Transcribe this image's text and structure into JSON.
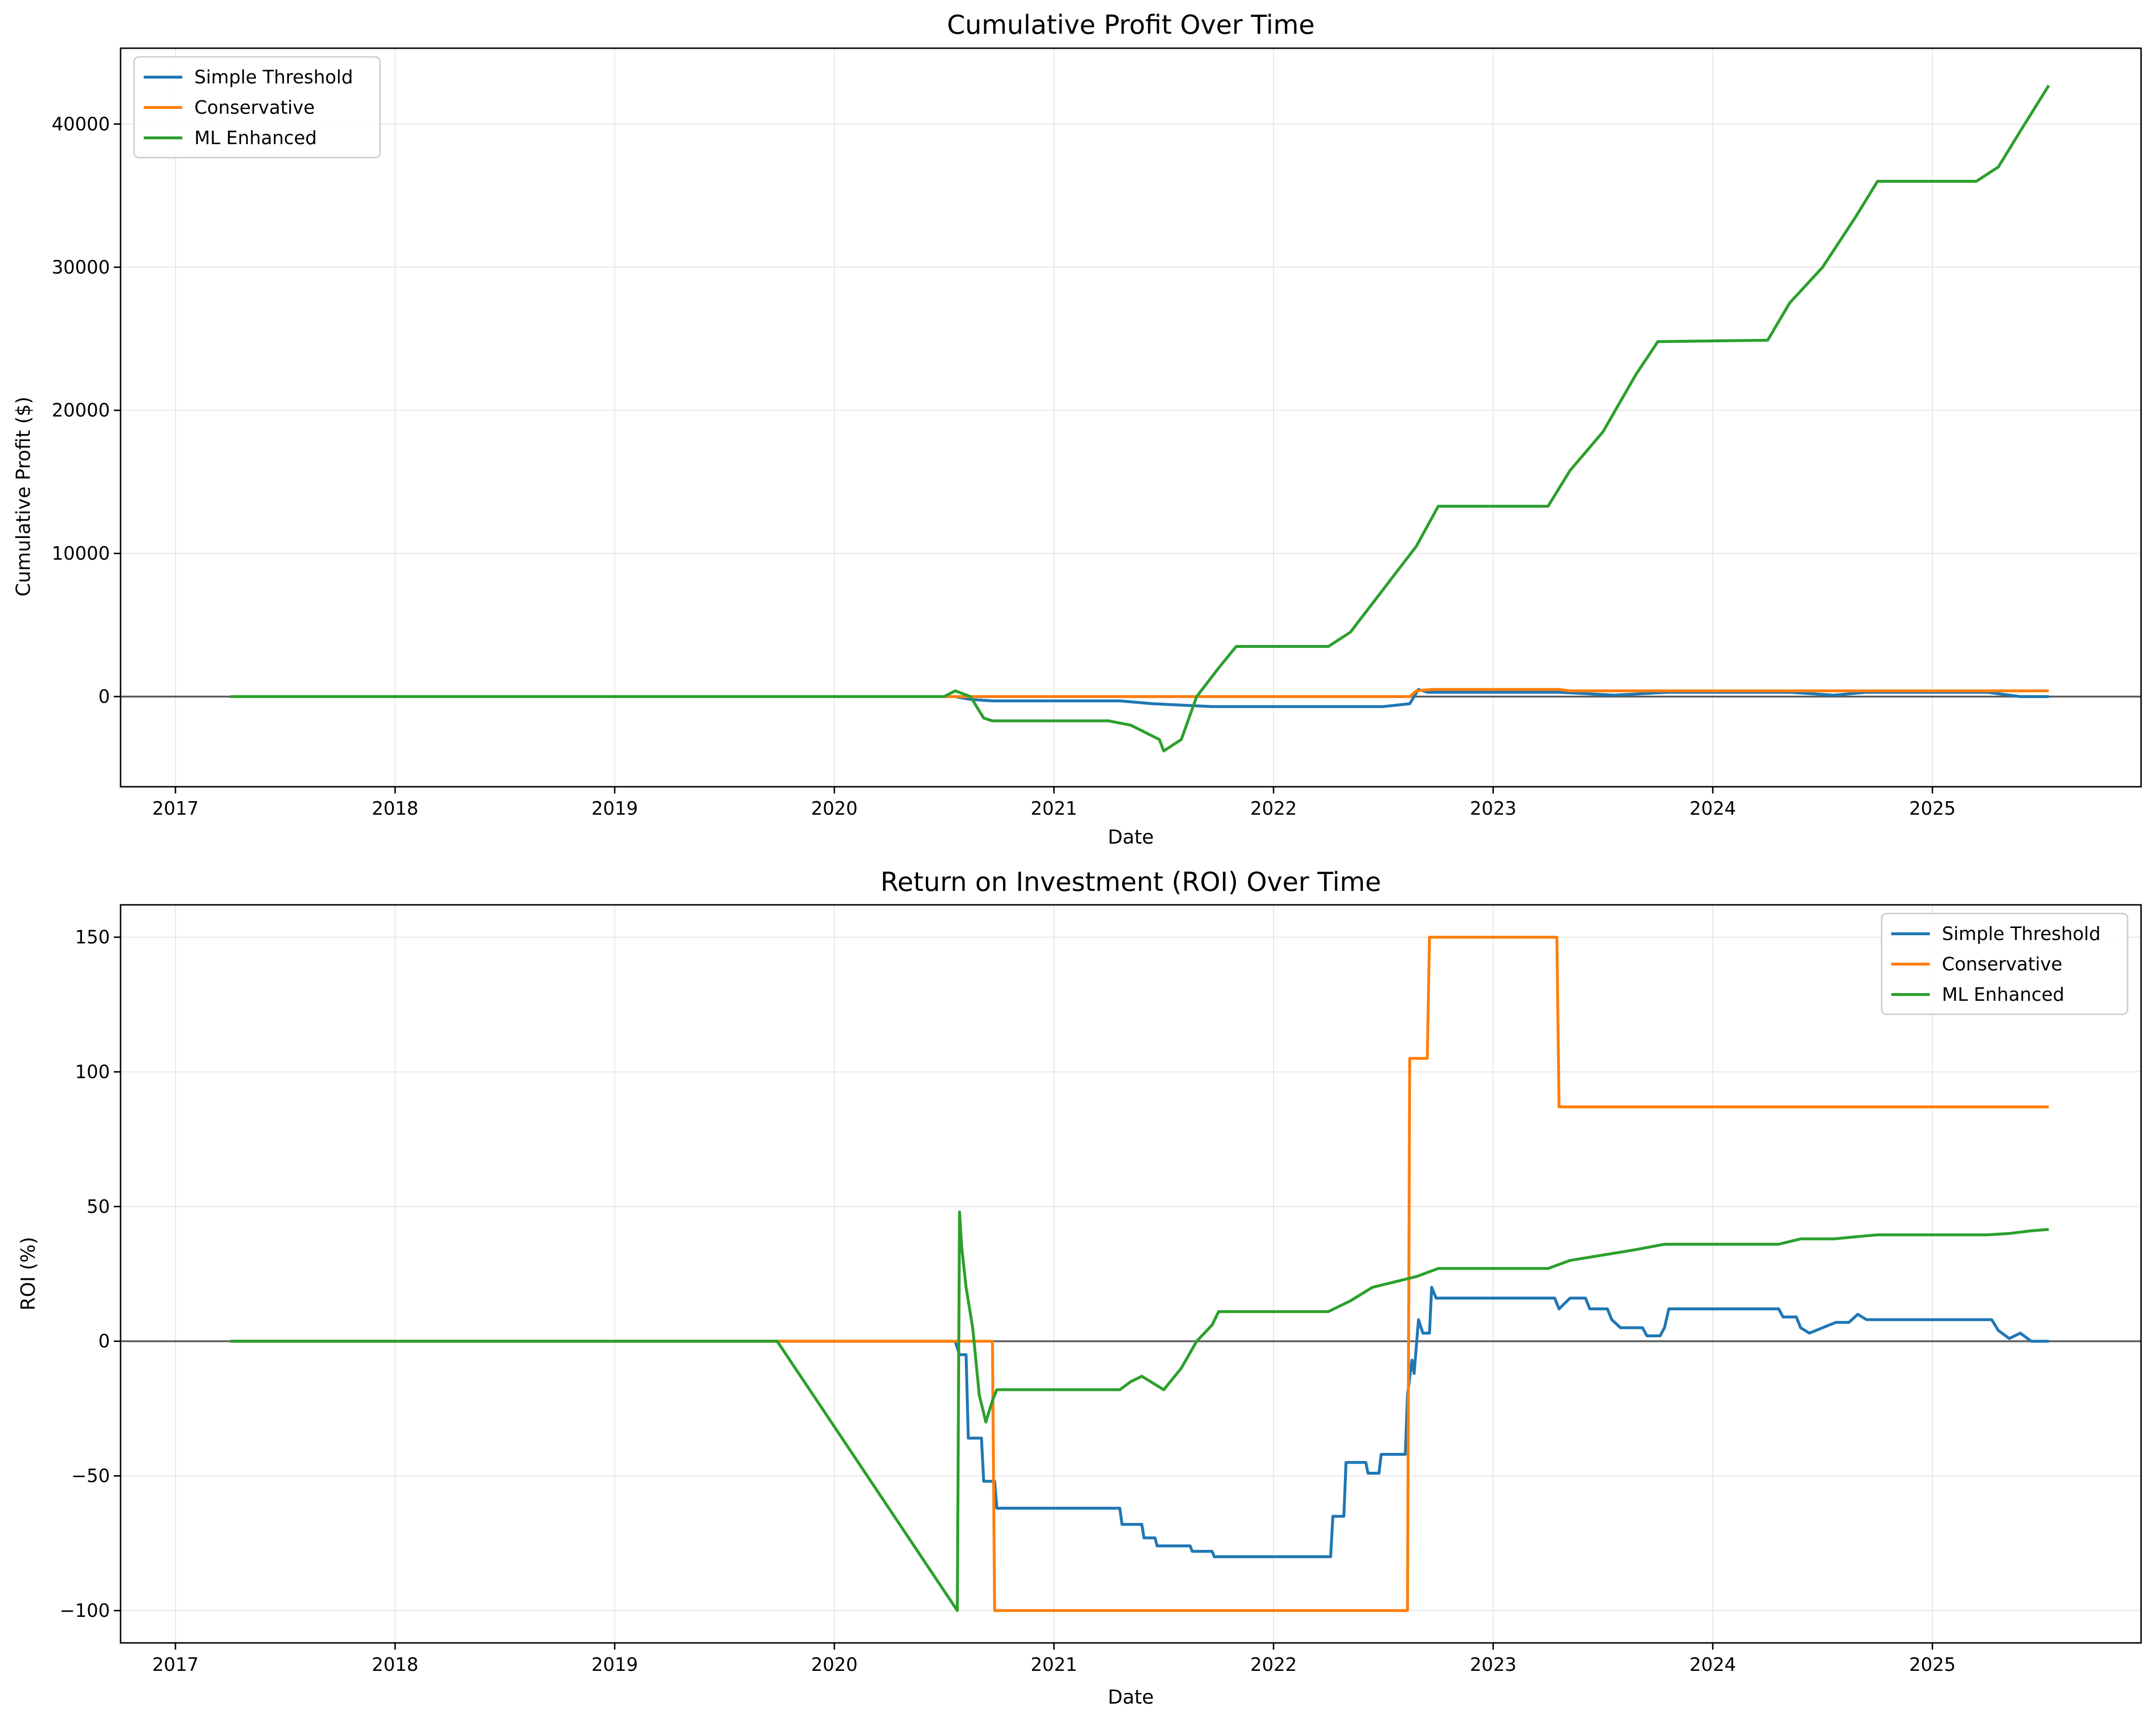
{
  "colors": {
    "simple": "#1f77b4",
    "conservative": "#ff7f0e",
    "ml": "#2ca02c",
    "zero_line": "#000000",
    "grid": "#e6e6e6"
  },
  "chart_data": [
    {
      "type": "line",
      "title": "Cumulative Profit Over Time",
      "xlabel": "Date",
      "ylabel": "Cumulative Profit ($)",
      "xlim": [
        2016.75,
        2025.95
      ],
      "ylim": [
        -6300,
        45300
      ],
      "xticks": [
        2017,
        2018,
        2019,
        2020,
        2021,
        2022,
        2023,
        2024,
        2025
      ],
      "xticklabels": [
        "2017",
        "2018",
        "2019",
        "2020",
        "2021",
        "2022",
        "2023",
        "2024",
        "2025"
      ],
      "yticks": [
        0,
        10000,
        20000,
        30000,
        40000
      ],
      "yticklabels": [
        "0",
        "10000",
        "20000",
        "30000",
        "40000"
      ],
      "grid": true,
      "legend": "top-left",
      "hline": 0,
      "series": [
        {
          "name": "Simple Threshold",
          "color_key": "simple",
          "points": [
            [
              2017.25,
              0
            ],
            [
              2020.55,
              0
            ],
            [
              2020.62,
              -200
            ],
            [
              2020.72,
              -300
            ],
            [
              2021.3,
              -300
            ],
            [
              2021.45,
              -500
            ],
            [
              2021.72,
              -700
            ],
            [
              2022.3,
              -700
            ],
            [
              2022.5,
              -700
            ],
            [
              2022.62,
              -500
            ],
            [
              2022.66,
              500
            ],
            [
              2022.7,
              300
            ],
            [
              2023.3,
              300
            ],
            [
              2023.55,
              100
            ],
            [
              2023.8,
              300
            ],
            [
              2024.35,
              300
            ],
            [
              2024.55,
              100
            ],
            [
              2024.7,
              300
            ],
            [
              2025.25,
              300
            ],
            [
              2025.4,
              0
            ],
            [
              2025.53,
              0
            ]
          ]
        },
        {
          "name": "Conservative",
          "color_key": "conservative",
          "points": [
            [
              2017.25,
              0
            ],
            [
              2020.62,
              0
            ],
            [
              2020.72,
              0
            ],
            [
              2022.62,
              0
            ],
            [
              2022.65,
              400
            ],
            [
              2022.72,
              500
            ],
            [
              2023.3,
              500
            ],
            [
              2023.35,
              400
            ],
            [
              2025.53,
              400
            ]
          ]
        },
        {
          "name": "ML Enhanced",
          "color_key": "ml",
          "points": [
            [
              2017.25,
              0
            ],
            [
              2020.5,
              0
            ],
            [
              2020.55,
              400
            ],
            [
              2020.62,
              0
            ],
            [
              2020.68,
              -1500
            ],
            [
              2020.72,
              -1700
            ],
            [
              2021.25,
              -1700
            ],
            [
              2021.35,
              -2000
            ],
            [
              2021.48,
              -3000
            ],
            [
              2021.5,
              -3800
            ],
            [
              2021.58,
              -3000
            ],
            [
              2021.65,
              0
            ],
            [
              2021.75,
              2000
            ],
            [
              2021.83,
              3500
            ],
            [
              2022.25,
              3500
            ],
            [
              2022.35,
              4500
            ],
            [
              2022.45,
              6500
            ],
            [
              2022.55,
              8500
            ],
            [
              2022.65,
              10500
            ],
            [
              2022.75,
              13300
            ],
            [
              2023.25,
              13300
            ],
            [
              2023.35,
              15800
            ],
            [
              2023.5,
              18500
            ],
            [
              2023.65,
              22500
            ],
            [
              2023.75,
              24800
            ],
            [
              2024.25,
              24900
            ],
            [
              2024.35,
              27500
            ],
            [
              2024.5,
              30000
            ],
            [
              2024.65,
              33500
            ],
            [
              2024.75,
              36000
            ],
            [
              2025.2,
              36000
            ],
            [
              2025.3,
              37000
            ],
            [
              2025.4,
              39500
            ],
            [
              2025.53,
              42700
            ]
          ]
        }
      ]
    },
    {
      "type": "line",
      "title": "Return on Investment (ROI) Over Time",
      "xlabel": "Date",
      "ylabel": "ROI (%)",
      "xlim": [
        2016.75,
        2025.95
      ],
      "ylim": [
        -112,
        162
      ],
      "xticks": [
        2017,
        2018,
        2019,
        2020,
        2021,
        2022,
        2023,
        2024,
        2025
      ],
      "xticklabels": [
        "2017",
        "2018",
        "2019",
        "2020",
        "2021",
        "2022",
        "2023",
        "2024",
        "2025"
      ],
      "yticks": [
        -100,
        -50,
        0,
        50,
        100,
        150
      ],
      "yticklabels": [
        "−100",
        "−50",
        "0",
        "50",
        "100",
        "150"
      ],
      "grid": true,
      "legend": "top-right",
      "hline": 0,
      "series": [
        {
          "name": "Simple Threshold",
          "color_key": "simple",
          "points": [
            [
              2017.25,
              0
            ],
            [
              2020.55,
              0
            ],
            [
              2020.57,
              -5
            ],
            [
              2020.6,
              -5
            ],
            [
              2020.61,
              -36
            ],
            [
              2020.67,
              -36
            ],
            [
              2020.68,
              -52
            ],
            [
              2020.73,
              -52
            ],
            [
              2020.74,
              -62
            ],
            [
              2021.3,
              -62
            ],
            [
              2021.31,
              -68
            ],
            [
              2021.4,
              -68
            ],
            [
              2021.41,
              -73
            ],
            [
              2021.46,
              -73
            ],
            [
              2021.47,
              -76
            ],
            [
              2021.62,
              -76
            ],
            [
              2021.63,
              -78
            ],
            [
              2021.72,
              -78
            ],
            [
              2021.73,
              -80
            ],
            [
              2022.26,
              -80
            ],
            [
              2022.27,
              -65
            ],
            [
              2022.32,
              -65
            ],
            [
              2022.33,
              -45
            ],
            [
              2022.42,
              -45
            ],
            [
              2022.43,
              -49
            ],
            [
              2022.48,
              -49
            ],
            [
              2022.49,
              -42
            ],
            [
              2022.6,
              -42
            ],
            [
              2022.61,
              -20
            ],
            [
              2022.63,
              -7
            ],
            [
              2022.64,
              -12
            ],
            [
              2022.66,
              8
            ],
            [
              2022.68,
              3
            ],
            [
              2022.71,
              3
            ],
            [
              2022.72,
              20
            ],
            [
              2022.74,
              16
            ],
            [
              2023.28,
              16
            ],
            [
              2023.3,
              12
            ],
            [
              2023.35,
              16
            ],
            [
              2023.42,
              16
            ],
            [
              2023.44,
              12
            ],
            [
              2023.52,
              12
            ],
            [
              2023.54,
              8
            ],
            [
              2023.58,
              5
            ],
            [
              2023.68,
              5
            ],
            [
              2023.7,
              2
            ],
            [
              2023.76,
              2
            ],
            [
              2023.78,
              5
            ],
            [
              2023.8,
              12
            ],
            [
              2024.3,
              12
            ],
            [
              2024.32,
              9
            ],
            [
              2024.38,
              9
            ],
            [
              2024.4,
              5
            ],
            [
              2024.44,
              3
            ],
            [
              2024.56,
              7
            ],
            [
              2024.62,
              7
            ],
            [
              2024.66,
              10
            ],
            [
              2024.7,
              8
            ],
            [
              2025.27,
              8
            ],
            [
              2025.3,
              4
            ],
            [
              2025.35,
              1
            ],
            [
              2025.4,
              3
            ],
            [
              2025.45,
              0
            ],
            [
              2025.53,
              0
            ]
          ]
        },
        {
          "name": "Conservative",
          "color_key": "conservative",
          "points": [
            [
              2017.25,
              0
            ],
            [
              2020.72,
              0
            ],
            [
              2020.73,
              -100
            ],
            [
              2022.61,
              -100
            ],
            [
              2022.62,
              105
            ],
            [
              2022.7,
              105
            ],
            [
              2022.71,
              150
            ],
            [
              2023.29,
              150
            ],
            [
              2023.3,
              87
            ],
            [
              2025.53,
              87
            ]
          ]
        },
        {
          "name": "ML Enhanced",
          "color_key": "ml",
          "points": [
            [
              2017.25,
              0
            ],
            [
              2019.74,
              0
            ],
            [
              2020.56,
              -100
            ],
            [
              2020.57,
              48
            ],
            [
              2020.58,
              35
            ],
            [
              2020.6,
              20
            ],
            [
              2020.63,
              5
            ],
            [
              2020.66,
              -20
            ],
            [
              2020.69,
              -30
            ],
            [
              2020.72,
              -22
            ],
            [
              2020.74,
              -18
            ],
            [
              2021.3,
              -18
            ],
            [
              2021.35,
              -15
            ],
            [
              2021.4,
              -13
            ],
            [
              2021.48,
              -17
            ],
            [
              2021.5,
              -18
            ],
            [
              2021.58,
              -10
            ],
            [
              2021.65,
              0
            ],
            [
              2021.72,
              6
            ],
            [
              2021.75,
              11
            ],
            [
              2022.25,
              11
            ],
            [
              2022.35,
              15
            ],
            [
              2022.45,
              20
            ],
            [
              2022.55,
              22
            ],
            [
              2022.65,
              24
            ],
            [
              2022.75,
              27
            ],
            [
              2023.25,
              27
            ],
            [
              2023.35,
              30
            ],
            [
              2023.5,
              32
            ],
            [
              2023.65,
              34
            ],
            [
              2023.78,
              36
            ],
            [
              2024.3,
              36
            ],
            [
              2024.4,
              38
            ],
            [
              2024.55,
              38
            ],
            [
              2024.68,
              39
            ],
            [
              2024.75,
              39.5
            ],
            [
              2025.25,
              39.5
            ],
            [
              2025.35,
              40
            ],
            [
              2025.45,
              41
            ],
            [
              2025.53,
              41.5
            ]
          ]
        }
      ]
    }
  ]
}
